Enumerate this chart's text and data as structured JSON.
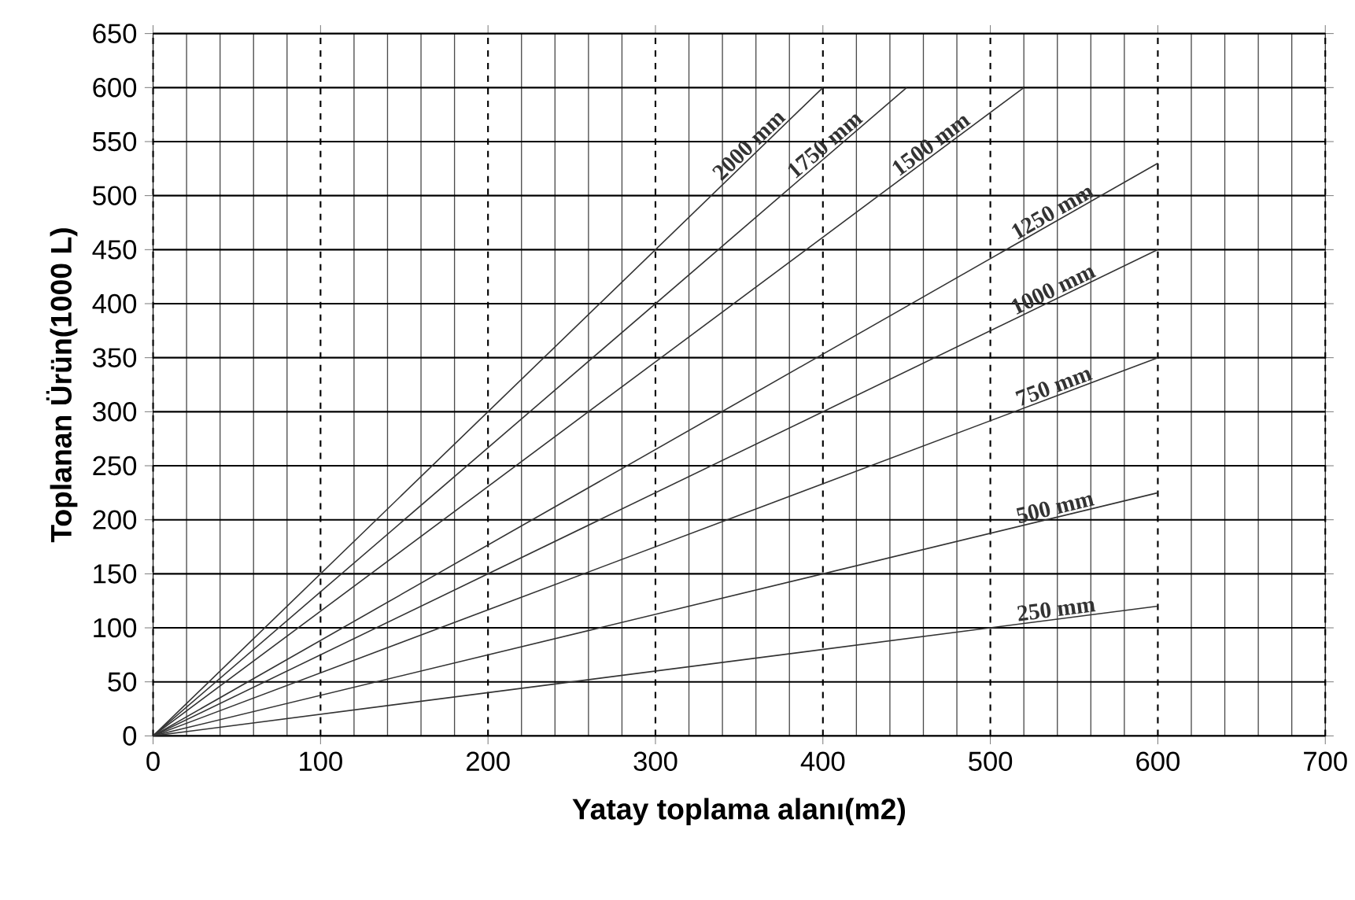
{
  "chart_data": {
    "type": "line",
    "xlabel": "Yatay toplama alanı(m2)",
    "ylabel": "Toplanan Ürün(1000 L)",
    "xlim": [
      0,
      700
    ],
    "ylim": [
      0,
      650
    ],
    "xticks": [
      0,
      100,
      200,
      300,
      400,
      500,
      600,
      700
    ],
    "yticks": [
      0,
      50,
      100,
      150,
      200,
      250,
      300,
      350,
      400,
      450,
      500,
      550,
      600,
      650
    ],
    "grid": true,
    "series": [
      {
        "name": "2000 mm",
        "color": "#333333",
        "x": [
          0,
          400
        ],
        "values": [
          0,
          600
        ]
      },
      {
        "name": "1750 mm",
        "color": "#333333",
        "x": [
          0,
          450
        ],
        "values": [
          0,
          600
        ]
      },
      {
        "name": "1500 mm",
        "color": "#333333",
        "x": [
          0,
          520
        ],
        "values": [
          0,
          600
        ]
      },
      {
        "name": "1250 mm",
        "color": "#333333",
        "x": [
          0,
          600
        ],
        "values": [
          0,
          530
        ]
      },
      {
        "name": "1000 mm",
        "color": "#333333",
        "x": [
          0,
          600
        ],
        "values": [
          0,
          450
        ]
      },
      {
        "name": "750 mm",
        "color": "#333333",
        "x": [
          0,
          600
        ],
        "values": [
          0,
          350
        ]
      },
      {
        "name": "500 mm",
        "color": "#333333",
        "x": [
          0,
          600
        ],
        "values": [
          0,
          225
        ]
      },
      {
        "name": "250 mm",
        "color": "#333333",
        "x": [
          0,
          600
        ],
        "values": [
          0,
          120
        ]
      }
    ]
  }
}
